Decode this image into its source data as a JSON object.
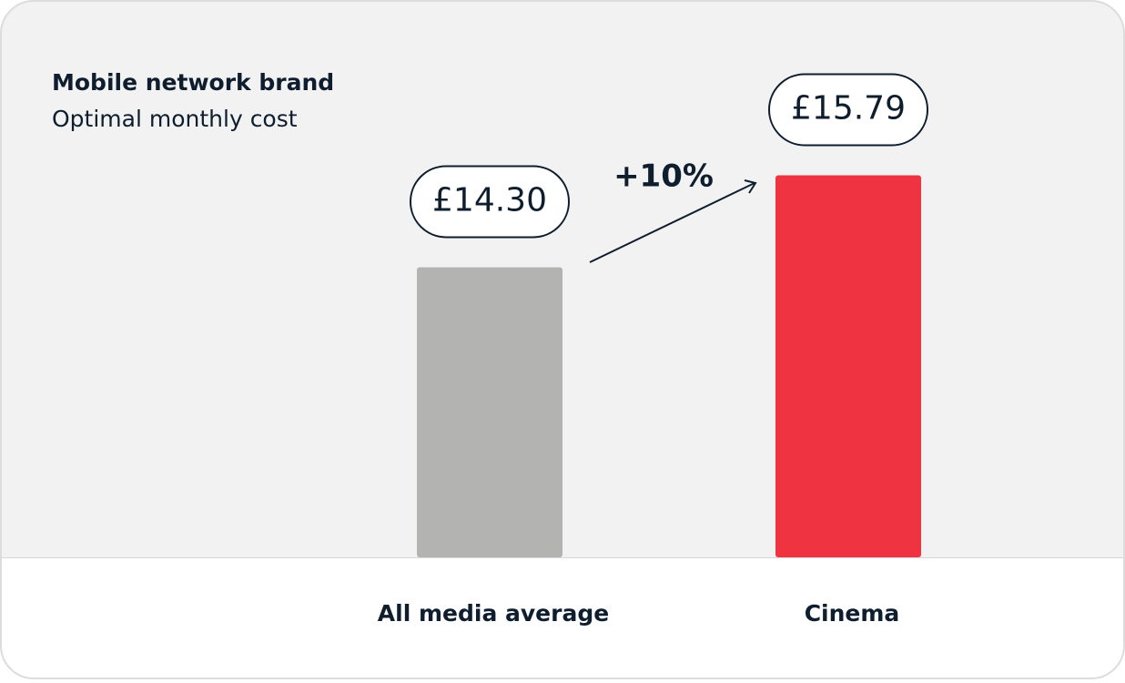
{
  "chart_data": {
    "type": "bar",
    "title": "Mobile network brand",
    "subtitle": "Optimal monthly cost",
    "categories": [
      "All media average",
      "Cinema"
    ],
    "values": [
      14.3,
      15.79
    ],
    "value_labels": [
      "£14.30",
      "£15.79"
    ],
    "colors": [
      "#b3b4b1",
      "#ef3340"
    ],
    "annotation": "+10%",
    "ylim": [
      9.6,
      16.8
    ]
  }
}
